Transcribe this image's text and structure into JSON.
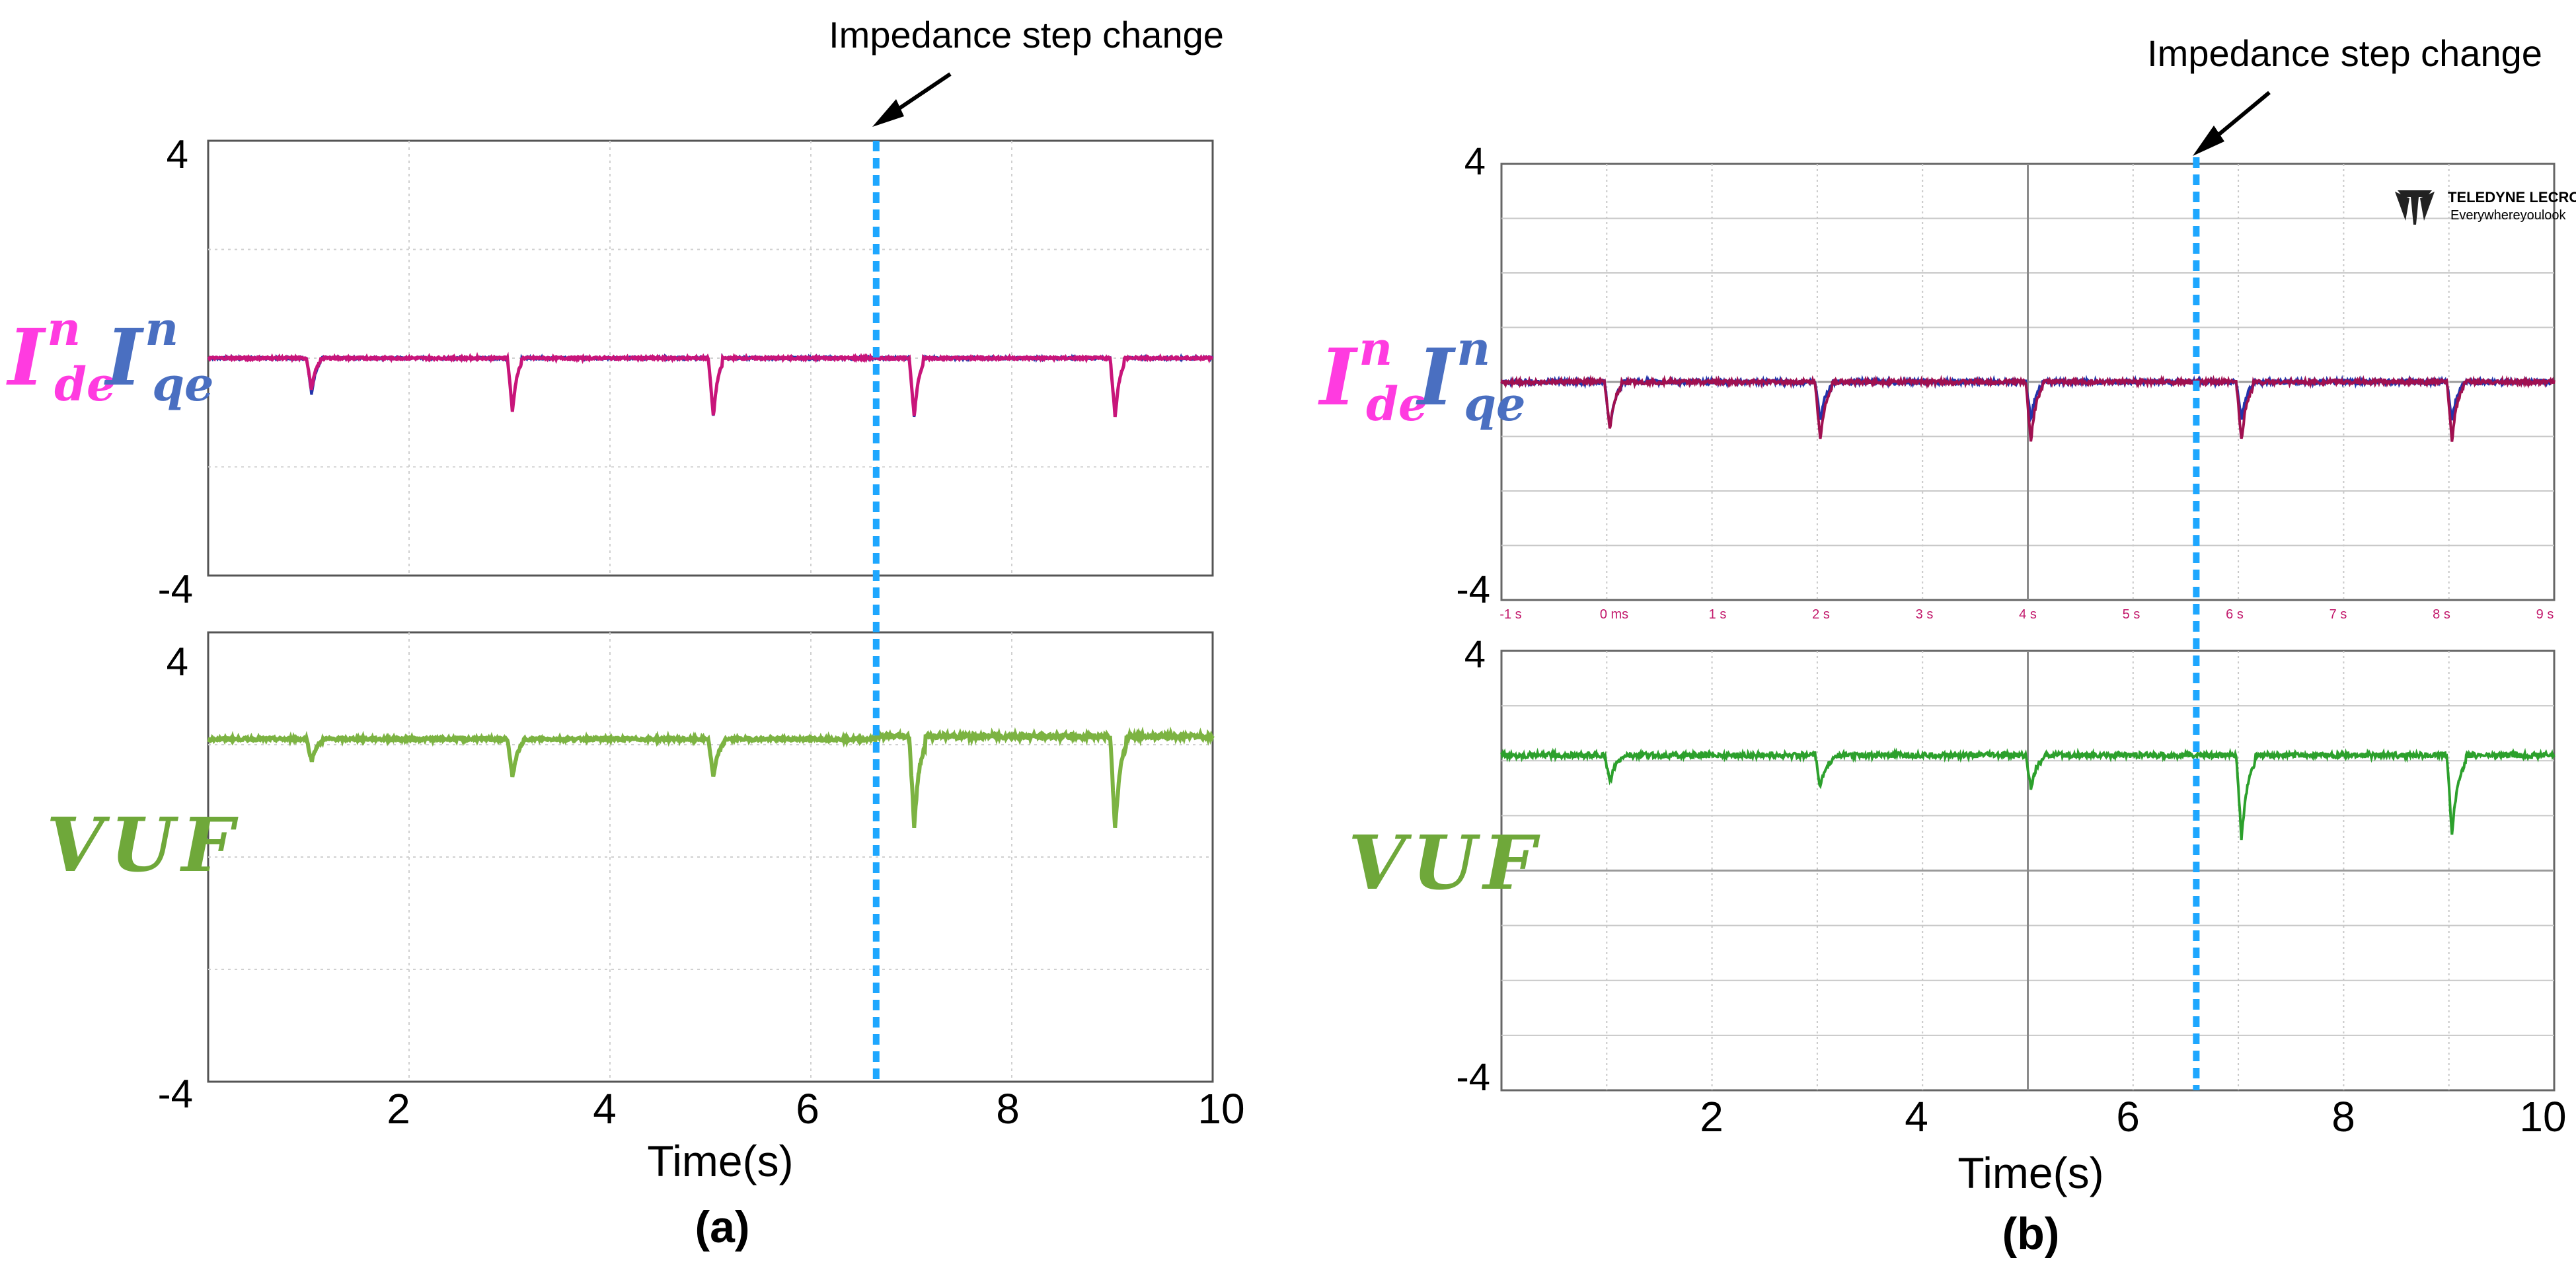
{
  "panels": {
    "a": {
      "label": "(a)",
      "xlabel": "Time(s)",
      "annotation": "Impedance step change",
      "top_ymax": "4",
      "top_ymin": "-4",
      "bottom_ymax": "4",
      "bottom_ymin": "-4",
      "x_ticks": [
        "2",
        "4",
        "6",
        "8",
        "10"
      ],
      "ylabel_top": {
        "I1": "I",
        "sup1": "n",
        "sub1": "de",
        "I2": "I",
        "sup2": "n",
        "sub2": "qe"
      },
      "ylabel_bottom": "VUF"
    },
    "b": {
      "label": "(b)",
      "xlabel": "Time(s)",
      "annotation": "Impedance step change",
      "top_ymax": "4",
      "top_ymin": "-4",
      "bottom_ymax": "4",
      "bottom_ymin": "-4",
      "x_ticks": [
        "2",
        "4",
        "6",
        "8",
        "10"
      ],
      "scope_ticks": [
        "-1 s",
        "0 ms",
        "1 s",
        "2 s",
        "3 s",
        "4 s",
        "5 s",
        "6 s",
        "7 s",
        "8 s",
        "9 s"
      ],
      "logo_brand": "TELEDYNE LECROY",
      "logo_tagline": "Everywhereyoulook",
      "ylabel_top": {
        "I1": "I",
        "sup1": "n",
        "sub1": "de",
        "I2": "I",
        "sup2": "n",
        "sub2": "qe"
      },
      "ylabel_bottom": "VUF"
    }
  },
  "colors": {
    "ide": "#ff3be0",
    "iqe": "#4a6fc1",
    "ide_trace_a": "#c8157a",
    "iqe_trace": "#2233aa",
    "ide_trace_b": "#a01050",
    "vuf_label": "#6fa83a",
    "vuf_trace_a": "#7cb342",
    "vuf_trace_b": "#2ca02c",
    "marker": "#1ea7ff",
    "pink_tick": "#c2186b"
  },
  "chart_data": [
    {
      "type": "line",
      "title": "(a) I_de^n I_qe^n",
      "xlabel": "Time(s)",
      "ylabel": "I_de^n I_qe^n",
      "xlim": [
        0,
        10
      ],
      "ylim": [
        -4,
        4
      ],
      "baseline": 0.0,
      "dips": [
        {
          "t": 1.0,
          "ide_depth": 0.6,
          "iqe_depth": 0.7
        },
        {
          "t": 3.0,
          "ide_depth": 1.0,
          "iqe_depth": 1.0
        },
        {
          "t": 5.0,
          "ide_depth": 1.1,
          "iqe_depth": 1.1
        },
        {
          "t": 7.0,
          "ide_depth": 1.1,
          "iqe_depth": 1.1
        },
        {
          "t": 9.0,
          "ide_depth": 1.1,
          "iqe_depth": 1.1
        }
      ],
      "step_change_t": 6.65
    },
    {
      "type": "line",
      "title": "(a) VUF",
      "xlabel": "Time(s)",
      "ylabel": "VUF",
      "xlim": [
        0,
        10
      ],
      "ylim": [
        -4,
        4
      ],
      "baseline_before": 2.1,
      "baseline_after": 2.15,
      "dips": [
        {
          "t": 1.0,
          "depth": 0.4
        },
        {
          "t": 3.0,
          "depth": 0.7
        },
        {
          "t": 5.0,
          "depth": 0.7
        },
        {
          "t": 7.0,
          "depth": 1.65
        },
        {
          "t": 9.0,
          "depth": 1.7
        }
      ],
      "step_change_t": 6.65
    },
    {
      "type": "line",
      "title": "(b) I_de^n I_qe^n",
      "xlabel": "Time(s)",
      "ylabel": "I_de^n I_qe^n",
      "xlim": [
        0,
        10
      ],
      "ylim": [
        -4,
        4
      ],
      "baseline": 0.0,
      "dips": [
        {
          "t": 1.0,
          "ide_depth": 0.9,
          "iqe_depth": 0.85
        },
        {
          "t": 3.0,
          "ide_depth": 1.1,
          "iqe_depth": 0.7
        },
        {
          "t": 5.0,
          "ide_depth": 1.1,
          "iqe_depth": 0.7
        },
        {
          "t": 7.0,
          "ide_depth": 1.1,
          "iqe_depth": 0.7
        },
        {
          "t": 9.0,
          "ide_depth": 1.1,
          "iqe_depth": 0.7
        }
      ],
      "step_change_t": 6.6
    },
    {
      "type": "line",
      "title": "(b) VUF",
      "xlabel": "Time(s)",
      "ylabel": "VUF",
      "xlim": [
        0,
        10
      ],
      "ylim": [
        -4,
        4
      ],
      "baseline_before": 2.1,
      "baseline_after": 2.1,
      "dips": [
        {
          "t": 1.0,
          "depth": 0.5
        },
        {
          "t": 3.0,
          "depth": 0.6
        },
        {
          "t": 5.0,
          "depth": 0.6
        },
        {
          "t": 7.0,
          "depth": 1.55
        },
        {
          "t": 9.0,
          "depth": 1.45
        }
      ],
      "step_change_t": 6.6
    }
  ]
}
